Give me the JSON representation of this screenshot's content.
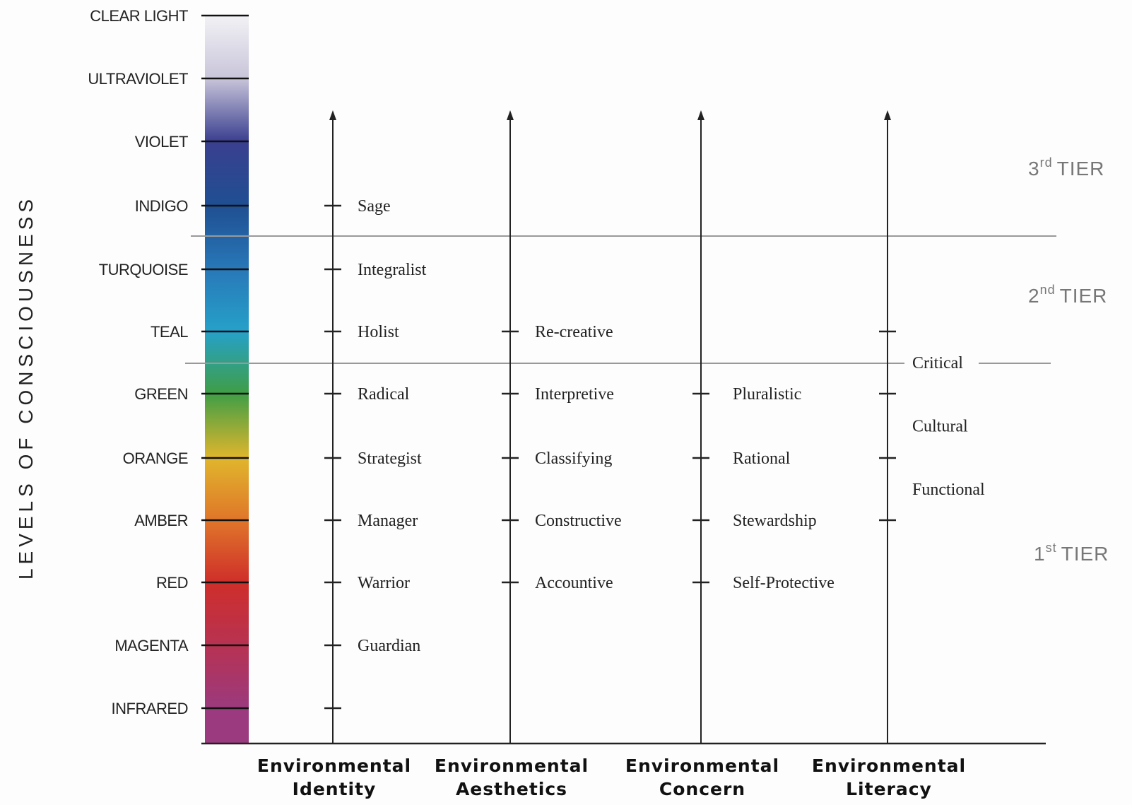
{
  "side_title": "LEVELS OF CONSCIOUSNESS",
  "levels": [
    {
      "label": "CLEAR LIGHT",
      "color": "#f2f2f5"
    },
    {
      "label": "ULTRAVIOLET",
      "color": "#c9c5da"
    },
    {
      "label": "VIOLET",
      "color": "#3a3f8f"
    },
    {
      "label": "INDIGO",
      "color": "#1f4f92"
    },
    {
      "label": "TURQUOISE",
      "color": "#2878b8"
    },
    {
      "label": "TEAL",
      "color": "#26a1c9"
    },
    {
      "label": "GREEN",
      "color": "#3f9e46"
    },
    {
      "label": "ORANGE",
      "color": "#e0b62c"
    },
    {
      "label": "AMBER",
      "color": "#e0762a"
    },
    {
      "label": "RED",
      "color": "#cf2e2a"
    },
    {
      "label": "MAGENTA",
      "color": "#b73252"
    },
    {
      "label": "INFRARED",
      "color": "#9b3a7e"
    }
  ],
  "tiers": [
    {
      "label": "TIER",
      "ordinal": "3",
      "suffix": "rd"
    },
    {
      "label": "TIER",
      "ordinal": "2",
      "suffix": "nd"
    },
    {
      "label": "TIER",
      "ordinal": "1",
      "suffix": "st"
    }
  ],
  "axes": [
    {
      "title_line1": "Environmental",
      "title_line2": "Identity",
      "ticks": [
        "INDIGO",
        "TURQUOISE",
        "TEAL",
        "GREEN",
        "ORANGE",
        "AMBER",
        "RED",
        "MAGENTA",
        "INFRARED"
      ],
      "stages": [
        {
          "label": "Sage",
          "level": "INDIGO"
        },
        {
          "label": "Integralist",
          "level": "TURQUOISE"
        },
        {
          "label": "Holist",
          "level": "TEAL"
        },
        {
          "label": "Radical",
          "level": "GREEN"
        },
        {
          "label": "Strategist",
          "level": "ORANGE"
        },
        {
          "label": "Manager",
          "level": "AMBER"
        },
        {
          "label": "Warrior",
          "level": "RED"
        },
        {
          "label": "Guardian",
          "level": "MAGENTA"
        }
      ]
    },
    {
      "title_line1": "Environmental",
      "title_line2": "Aesthetics",
      "ticks": [
        "TEAL",
        "GREEN",
        "ORANGE",
        "AMBER",
        "RED"
      ],
      "stages": [
        {
          "label": "Re-creative",
          "level": "TEAL"
        },
        {
          "label": "Interpretive",
          "level": "GREEN"
        },
        {
          "label": "Classifying",
          "level": "ORANGE"
        },
        {
          "label": "Constructive",
          "level": "AMBER"
        },
        {
          "label": "Accountive",
          "level": "RED"
        }
      ]
    },
    {
      "title_line1": "Environmental",
      "title_line2": "Concern",
      "ticks": [
        "GREEN",
        "ORANGE",
        "AMBER",
        "RED"
      ],
      "stages": [
        {
          "label": "Pluralistic",
          "level": "GREEN"
        },
        {
          "label": "Rational",
          "level": "ORANGE"
        },
        {
          "label": "Stewardship",
          "level": "AMBER"
        },
        {
          "label": "Self-Protective",
          "level": "RED"
        }
      ]
    },
    {
      "title_line1": "Environmental",
      "title_line2": "Literacy",
      "ticks": [
        "TEAL",
        "GREEN",
        "ORANGE",
        "AMBER"
      ],
      "stages": [
        {
          "label": "Critical",
          "level": "TEAL-GREEN"
        },
        {
          "label": "Cultural",
          "level": "GREEN-ORANGE"
        },
        {
          "label": "Functional",
          "level": "ORANGE-AMBER"
        }
      ]
    }
  ]
}
